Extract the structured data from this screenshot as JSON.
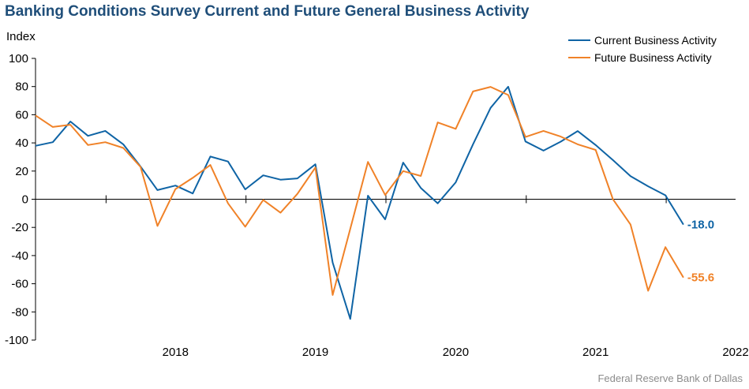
{
  "title": "Banking Conditions Survey Current and Future General Business Activity",
  "source": "Federal Reserve Bank of Dallas",
  "chart_data": {
    "type": "line",
    "ylabel": "Index",
    "ylim": [
      -100,
      100
    ],
    "yticks": [
      100,
      80,
      60,
      40,
      20,
      0,
      -20,
      -40,
      -60,
      -80,
      -100
    ],
    "xticks": [
      "2018",
      "2019",
      "2020",
      "2021",
      "2022"
    ],
    "x": [
      "2017-Q3",
      "2017-Q4",
      "2018-Q1",
      "2018-Q2",
      "2018-Q3",
      "2018-Q4",
      "2019-Q1",
      "2019-Q2",
      "2019-Q3",
      "2019-Q4",
      "2020-Q1",
      "2020-Q2",
      "2020-Q3",
      "2020-Q4",
      "2021-Q1",
      "2021-Q2",
      "2021-Q3",
      "2021-Q4",
      "2022-Q1",
      "2022-Q2"
    ],
    "legend_position": "top-right",
    "grid": false,
    "series": [
      {
        "name": "Current Business Activity",
        "color": "#0f64a5",
        "end_label": "-18.0",
        "points": [
          [
            "2017-07-01",
            37.9
          ],
          [
            "2017-08-15",
            40.5
          ],
          [
            "2017-09-30",
            55.2
          ],
          [
            "2017-11-15",
            45.0
          ],
          [
            "2017-12-30",
            48.5
          ],
          [
            "2018-02-15",
            39.0
          ],
          [
            "2018-04-01",
            23.2
          ],
          [
            "2018-05-15",
            6.5
          ],
          [
            "2018-07-01",
            9.7
          ],
          [
            "2018-08-15",
            4.1
          ],
          [
            "2018-09-30",
            30.3
          ],
          [
            "2018-11-15",
            26.8
          ],
          [
            "2018-12-30",
            7.0
          ],
          [
            "2019-02-15",
            17.0
          ],
          [
            "2019-04-01",
            13.9
          ],
          [
            "2019-05-15",
            14.8
          ],
          [
            "2019-07-01",
            24.8
          ],
          [
            "2019-08-15",
            -45.0
          ],
          [
            "2019-09-30",
            -85.0
          ],
          [
            "2019-11-15",
            2.5
          ],
          [
            "2019-12-30",
            -14.3
          ],
          [
            "2020-02-15",
            26.0
          ],
          [
            "2020-04-01",
            8.0
          ],
          [
            "2020-05-15",
            -2.9
          ],
          [
            "2020-07-01",
            12.0
          ],
          [
            "2020-08-15",
            39.0
          ],
          [
            "2020-09-30",
            64.9
          ],
          [
            "2020-11-15",
            79.9
          ],
          [
            "2020-12-30",
            41.0
          ],
          [
            "2021-02-15",
            34.5
          ],
          [
            "2021-04-01",
            40.9
          ],
          [
            "2021-05-15",
            48.4
          ],
          [
            "2021-07-01",
            38.5
          ],
          [
            "2021-08-15",
            27.8
          ],
          [
            "2021-09-30",
            16.4
          ],
          [
            "2021-11-15",
            9.2
          ],
          [
            "2021-12-30",
            2.8
          ],
          [
            "2022-02-15",
            -18.0
          ]
        ]
      },
      {
        "name": "Future Business Activity",
        "color": "#f08228",
        "end_label": "-55.6",
        "points": [
          [
            "2017-07-01",
            59.5
          ],
          [
            "2017-08-15",
            51.3
          ],
          [
            "2017-09-30",
            52.9
          ],
          [
            "2017-11-15",
            38.5
          ],
          [
            "2017-12-30",
            40.5
          ],
          [
            "2018-02-15",
            36.4
          ],
          [
            "2018-04-01",
            22.9
          ],
          [
            "2018-05-15",
            -19.0
          ],
          [
            "2018-07-01",
            7.2
          ],
          [
            "2018-08-15",
            15.2
          ],
          [
            "2018-09-30",
            24.3
          ],
          [
            "2018-11-15",
            -2.9
          ],
          [
            "2018-12-30",
            -19.5
          ],
          [
            "2019-02-15",
            -0.5
          ],
          [
            "2019-04-01",
            -9.6
          ],
          [
            "2019-05-15",
            3.8
          ],
          [
            "2019-07-01",
            22.5
          ],
          [
            "2019-08-15",
            -68.0
          ],
          [
            "2019-09-30",
            -21.0
          ],
          [
            "2019-11-15",
            26.5
          ],
          [
            "2019-12-30",
            3.0
          ],
          [
            "2020-02-15",
            20.0
          ],
          [
            "2020-04-01",
            16.5
          ],
          [
            "2020-05-15",
            54.5
          ],
          [
            "2020-07-01",
            50.0
          ],
          [
            "2020-08-15",
            76.5
          ],
          [
            "2020-09-30",
            79.8
          ],
          [
            "2020-11-15",
            74.0
          ],
          [
            "2020-12-30",
            44.2
          ],
          [
            "2021-02-15",
            48.5
          ],
          [
            "2021-04-01",
            44.5
          ],
          [
            "2021-05-15",
            39.0
          ],
          [
            "2021-07-01",
            35.0
          ],
          [
            "2021-08-15",
            0.0
          ],
          [
            "2021-09-30",
            -18.0
          ],
          [
            "2021-11-15",
            -65.0
          ],
          [
            "2021-12-30",
            -34.0
          ],
          [
            "2022-02-15",
            -55.6
          ]
        ]
      }
    ]
  }
}
